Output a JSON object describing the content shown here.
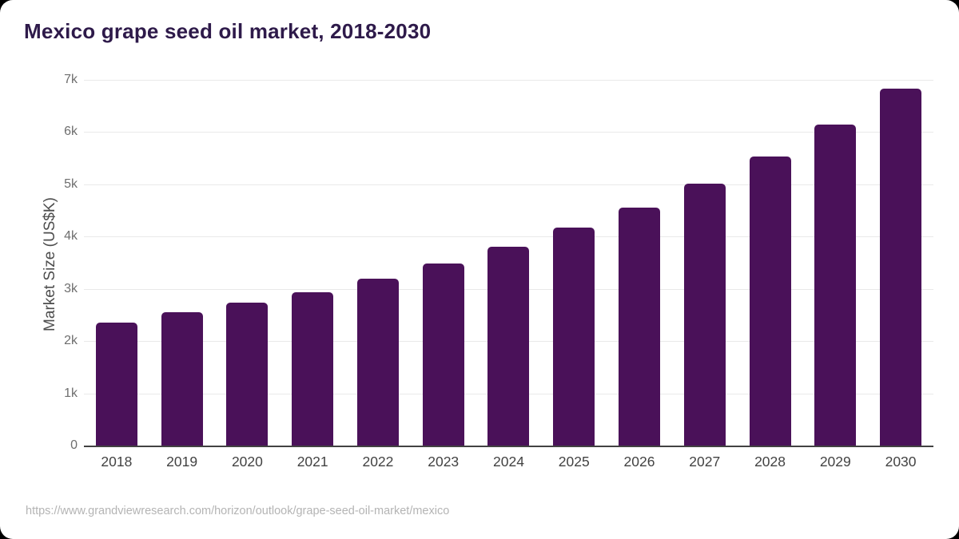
{
  "title": "Mexico grape seed oil market, 2018-2030",
  "source_url": "https://www.grandviewresearch.com/horizon/outlook/grape-seed-oil-market/mexico",
  "colors": {
    "bar": "#4a1159",
    "title_text": "#2e1a4a",
    "axis_line": "#424242",
    "gridline": "#e9e9e9",
    "tick_text": "#6e6e6e",
    "year_text": "#424242",
    "ylabel_text": "#4d4d4d",
    "source_text": "#b4b4b4",
    "background": "#ffffff"
  },
  "chart_data": {
    "type": "bar",
    "title": "Mexico grape seed oil market, 2018-2030",
    "xlabel": "",
    "ylabel": "Market Size (US$K)",
    "categories": [
      "2018",
      "2019",
      "2020",
      "2021",
      "2022",
      "2023",
      "2024",
      "2025",
      "2026",
      "2027",
      "2028",
      "2029",
      "2030"
    ],
    "values": [
      2350,
      2560,
      2730,
      2940,
      3200,
      3490,
      3800,
      4170,
      4560,
      5020,
      5540,
      6140,
      6830
    ],
    "ylim": [
      0,
      7000
    ],
    "ytick_labels": [
      "0",
      "1k",
      "2k",
      "3k",
      "4k",
      "5k",
      "6k",
      "7k"
    ],
    "ytick_values": [
      0,
      1000,
      2000,
      3000,
      4000,
      5000,
      6000,
      7000
    ],
    "grid": true,
    "legend": false
  }
}
